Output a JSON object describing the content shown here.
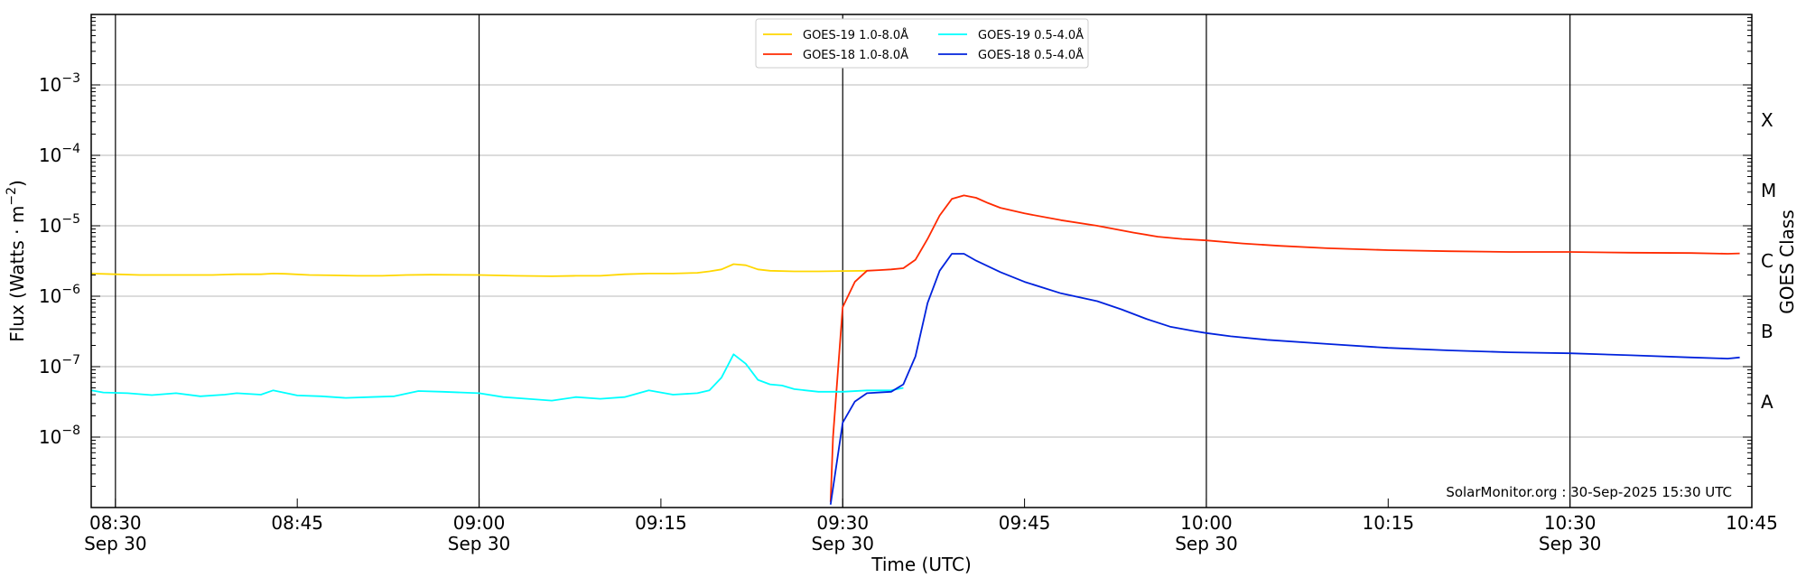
{
  "chart_data": {
    "type": "line",
    "title": "",
    "xlabel": "Time (UTC)",
    "ylabel": "Flux (Watts · m⁻²)",
    "y2label": "GOES Class",
    "yscale": "log",
    "ylim": [
      1e-09,
      0.01
    ],
    "xlim": [
      "08:28",
      "10:45"
    ],
    "grid": "horizontal at decades",
    "legend_position": "top-center",
    "credit": "SolarMonitor.org : 30-Sep-2025 15:30 UTC",
    "xticks": [
      {
        "time": "08:30",
        "label": "08:30",
        "date": "Sep 30",
        "vline": true
      },
      {
        "time": "08:45",
        "label": "08:45",
        "date": "",
        "vline": false
      },
      {
        "time": "09:00",
        "label": "09:00",
        "date": "Sep 30",
        "vline": true
      },
      {
        "time": "09:15",
        "label": "09:15",
        "date": "",
        "vline": false
      },
      {
        "time": "09:30",
        "label": "09:30",
        "date": "Sep 30",
        "vline": true
      },
      {
        "time": "09:45",
        "label": "09:45",
        "date": "",
        "vline": false
      },
      {
        "time": "10:00",
        "label": "10:00",
        "date": "Sep 30",
        "vline": true
      },
      {
        "time": "10:15",
        "label": "10:15",
        "date": "",
        "vline": false
      },
      {
        "time": "10:30",
        "label": "10:30",
        "date": "Sep 30",
        "vline": true
      },
      {
        "time": "10:45",
        "label": "10:45",
        "date": "",
        "vline": false
      }
    ],
    "yticks": [
      {
        "value": 1e-08,
        "base": "10",
        "exp": "−8"
      },
      {
        "value": 1e-07,
        "base": "10",
        "exp": "−7"
      },
      {
        "value": 1e-06,
        "base": "10",
        "exp": "−6"
      },
      {
        "value": 1e-05,
        "base": "10",
        "exp": "−5"
      },
      {
        "value": 0.0001,
        "base": "10",
        "exp": "−4"
      },
      {
        "value": 0.001,
        "base": "10",
        "exp": "−3"
      }
    ],
    "goes_classes": [
      {
        "label": "A",
        "value": 3.16e-08
      },
      {
        "label": "B",
        "value": 3.16e-07
      },
      {
        "label": "C",
        "value": 3.16e-06
      },
      {
        "label": "M",
        "value": 3.16e-05
      },
      {
        "label": "X",
        "value": 0.000316
      }
    ],
    "series": [
      {
        "name": "GOES-19 1.0-8.0Å",
        "color": "#FFD700",
        "points": [
          [
            "08:28",
            2.1e-06
          ],
          [
            "08:30",
            2.05e-06
          ],
          [
            "08:32",
            2e-06
          ],
          [
            "08:35",
            2e-06
          ],
          [
            "08:38",
            2e-06
          ],
          [
            "08:40",
            2.05e-06
          ],
          [
            "08:42",
            2.05e-06
          ],
          [
            "08:43",
            2.1e-06
          ],
          [
            "08:44",
            2.08e-06
          ],
          [
            "08:46",
            2e-06
          ],
          [
            "08:48",
            1.98e-06
          ],
          [
            "08:50",
            1.95e-06
          ],
          [
            "08:52",
            1.95e-06
          ],
          [
            "08:54",
            2e-06
          ],
          [
            "08:56",
            2.02e-06
          ],
          [
            "09:00",
            2e-06
          ],
          [
            "09:03",
            1.95e-06
          ],
          [
            "09:06",
            1.92e-06
          ],
          [
            "09:08",
            1.95e-06
          ],
          [
            "09:10",
            1.95e-06
          ],
          [
            "09:12",
            2.05e-06
          ],
          [
            "09:14",
            2.1e-06
          ],
          [
            "09:16",
            2.1e-06
          ],
          [
            "09:18",
            2.15e-06
          ],
          [
            "09:19",
            2.25e-06
          ],
          [
            "09:20",
            2.4e-06
          ],
          [
            "09:21",
            2.85e-06
          ],
          [
            "09:22",
            2.75e-06
          ],
          [
            "09:23",
            2.4e-06
          ],
          [
            "09:24",
            2.3e-06
          ],
          [
            "09:26",
            2.25e-06
          ],
          [
            "09:28",
            2.25e-06
          ],
          [
            "09:30",
            2.28e-06
          ],
          [
            "09:32",
            2.3e-06
          ]
        ]
      },
      {
        "name": "GOES-18 1.0-8.0Å",
        "color": "#FF2A00",
        "points": [
          [
            "09:29",
            1.2e-09
          ],
          [
            "09:29.2",
            1e-08
          ],
          [
            "09:30",
            7e-07
          ],
          [
            "09:31",
            1.6e-06
          ],
          [
            "09:32",
            2.3e-06
          ],
          [
            "09:33",
            2.35e-06
          ],
          [
            "09:34",
            2.4e-06
          ],
          [
            "09:35",
            2.5e-06
          ],
          [
            "09:36",
            3.3e-06
          ],
          [
            "09:37",
            6.5e-06
          ],
          [
            "09:38",
            1.4e-05
          ],
          [
            "09:39",
            2.4e-05
          ],
          [
            "09:40",
            2.7e-05
          ],
          [
            "09:41",
            2.5e-05
          ],
          [
            "09:42",
            2.1e-05
          ],
          [
            "09:43",
            1.8e-05
          ],
          [
            "09:45",
            1.5e-05
          ],
          [
            "09:48",
            1.2e-05
          ],
          [
            "09:51",
            1e-05
          ],
          [
            "09:54",
            8e-06
          ],
          [
            "09:56",
            7e-06
          ],
          [
            "09:58",
            6.5e-06
          ],
          [
            "10:00",
            6.2e-06
          ],
          [
            "10:03",
            5.6e-06
          ],
          [
            "10:06",
            5.2e-06
          ],
          [
            "10:10",
            4.8e-06
          ],
          [
            "10:15",
            4.5e-06
          ],
          [
            "10:20",
            4.35e-06
          ],
          [
            "10:25",
            4.25e-06
          ],
          [
            "10:30",
            4.25e-06
          ],
          [
            "10:35",
            4.15e-06
          ],
          [
            "10:40",
            4.1e-06
          ],
          [
            "10:43",
            4e-06
          ],
          [
            "10:44",
            4.05e-06
          ]
        ]
      },
      {
        "name": "GOES-19 0.5-4.0Å",
        "color": "#00FFFF",
        "points": [
          [
            "08:28",
            4.6e-08
          ],
          [
            "08:29",
            4.3e-08
          ],
          [
            "08:31",
            4.2e-08
          ],
          [
            "08:33",
            3.95e-08
          ],
          [
            "08:35",
            4.2e-08
          ],
          [
            "08:37",
            3.8e-08
          ],
          [
            "08:39",
            4e-08
          ],
          [
            "08:40",
            4.2e-08
          ],
          [
            "08:42",
            4e-08
          ],
          [
            "08:43",
            4.6e-08
          ],
          [
            "08:45",
            3.9e-08
          ],
          [
            "08:47",
            3.8e-08
          ],
          [
            "08:49",
            3.6e-08
          ],
          [
            "08:51",
            3.7e-08
          ],
          [
            "08:53",
            3.8e-08
          ],
          [
            "08:55",
            4.5e-08
          ],
          [
            "08:57",
            4.4e-08
          ],
          [
            "09:00",
            4.2e-08
          ],
          [
            "09:02",
            3.7e-08
          ],
          [
            "09:04",
            3.5e-08
          ],
          [
            "09:06",
            3.3e-08
          ],
          [
            "09:08",
            3.7e-08
          ],
          [
            "09:10",
            3.5e-08
          ],
          [
            "09:12",
            3.7e-08
          ],
          [
            "09:14",
            4.6e-08
          ],
          [
            "09:16",
            4e-08
          ],
          [
            "09:18",
            4.2e-08
          ],
          [
            "09:19",
            4.6e-08
          ],
          [
            "09:20",
            7e-08
          ],
          [
            "09:21",
            1.5e-07
          ],
          [
            "09:22",
            1.1e-07
          ],
          [
            "09:23",
            6.5e-08
          ],
          [
            "09:24",
            5.6e-08
          ],
          [
            "09:25",
            5.4e-08
          ],
          [
            "09:26",
            4.8e-08
          ],
          [
            "09:28",
            4.4e-08
          ],
          [
            "09:30",
            4.4e-08
          ],
          [
            "09:32",
            4.6e-08
          ],
          [
            "09:34",
            4.6e-08
          ],
          [
            "09:35",
            5e-08
          ]
        ]
      },
      {
        "name": "GOES-18 0.5-4.0Å",
        "color": "#0022DD",
        "points": [
          [
            "09:29",
            1.1e-09
          ],
          [
            "09:30",
            1.6e-08
          ],
          [
            "09:31",
            3.2e-08
          ],
          [
            "09:32",
            4.2e-08
          ],
          [
            "09:34",
            4.4e-08
          ],
          [
            "09:35",
            5.6e-08
          ],
          [
            "09:36",
            1.4e-07
          ],
          [
            "09:37",
            8e-07
          ],
          [
            "09:38",
            2.3e-06
          ],
          [
            "09:39",
            4e-06
          ],
          [
            "09:40",
            4e-06
          ],
          [
            "09:41",
            3.2e-06
          ],
          [
            "09:43",
            2.2e-06
          ],
          [
            "09:45",
            1.6e-06
          ],
          [
            "09:48",
            1.1e-06
          ],
          [
            "09:51",
            8.5e-07
          ],
          [
            "09:53",
            6.5e-07
          ],
          [
            "09:55",
            4.8e-07
          ],
          [
            "09:57",
            3.7e-07
          ],
          [
            "09:59",
            3.2e-07
          ],
          [
            "10:00",
            3e-07
          ],
          [
            "10:02",
            2.7e-07
          ],
          [
            "10:05",
            2.4e-07
          ],
          [
            "10:10",
            2.1e-07
          ],
          [
            "10:15",
            1.85e-07
          ],
          [
            "10:20",
            1.7e-07
          ],
          [
            "10:25",
            1.6e-07
          ],
          [
            "10:30",
            1.55e-07
          ],
          [
            "10:35",
            1.45e-07
          ],
          [
            "10:40",
            1.35e-07
          ],
          [
            "10:43",
            1.3e-07
          ],
          [
            "10:44",
            1.35e-07
          ]
        ]
      }
    ]
  }
}
